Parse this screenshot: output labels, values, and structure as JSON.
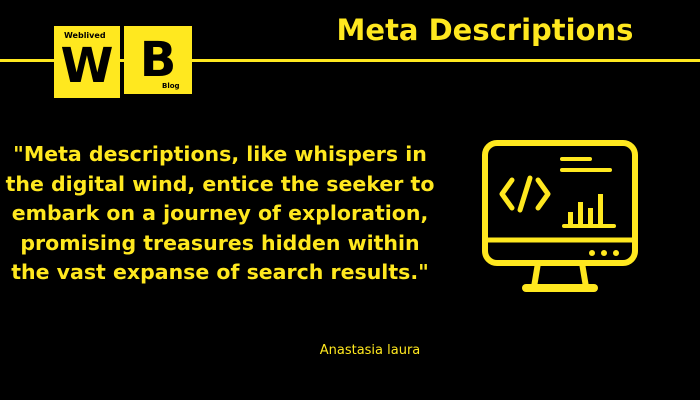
{
  "header": {
    "title": "Meta Descriptions"
  },
  "logo": {
    "small_text": "Weblived",
    "letter_w": "W",
    "letter_b": "B",
    "blog_text": "Blog"
  },
  "quote": {
    "text": "\"Meta descriptions, like whispers in the digital wind, entice the seeker to embark on a journey of exploration, promising treasures hidden within the vast expanse of search results.\"",
    "author": "Anastasia laura"
  },
  "icon": {
    "name": "monitor-code-chart-icon"
  },
  "colors": {
    "background": "#000000",
    "accent": "#ffe81f"
  }
}
